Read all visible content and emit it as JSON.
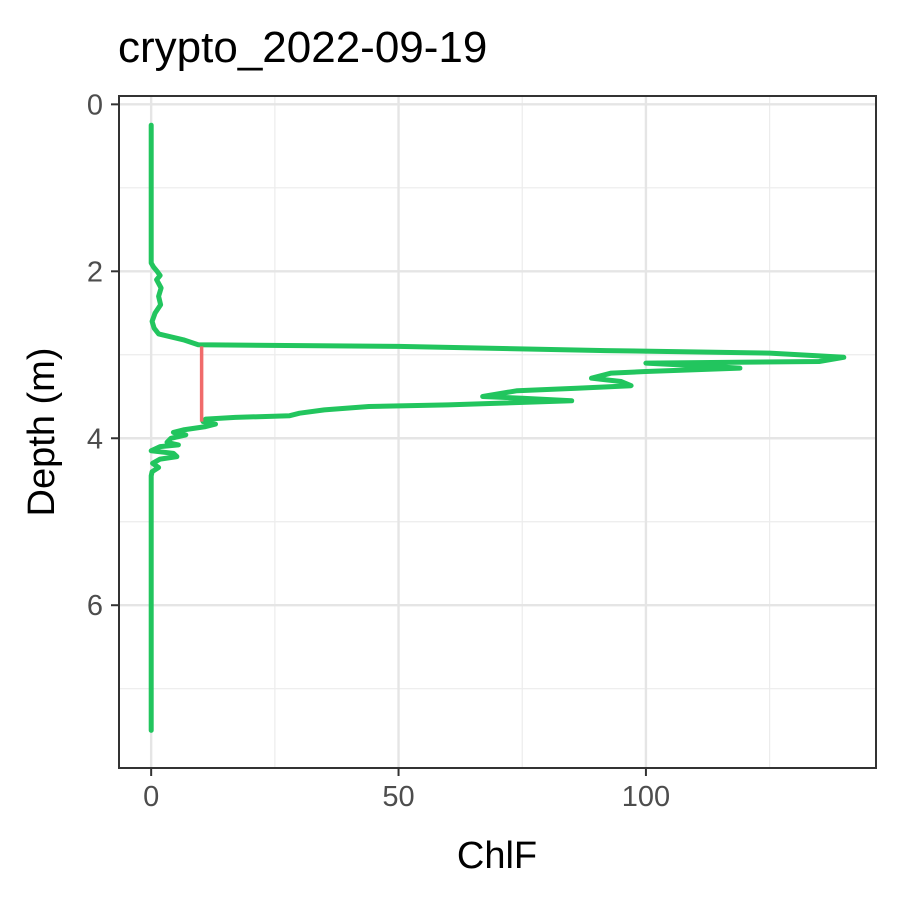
{
  "chart_data": {
    "type": "line",
    "title": "crypto_2022-09-19",
    "xlabel": "ChlF",
    "ylabel": "Depth (m)",
    "xlim": [
      -6.5,
      146.5
    ],
    "ylim": [
      7.95,
      -0.1
    ],
    "y_reversed": true,
    "x_ticks": [
      0,
      50,
      100
    ],
    "x_tick_labels": [
      "0",
      "50",
      "100"
    ],
    "x_minor_ticks": [
      25,
      75,
      125
    ],
    "y_ticks": [
      0,
      2,
      4,
      6
    ],
    "y_tick_labels": [
      "0",
      "2",
      "4",
      "6"
    ],
    "y_minor_ticks": [
      1,
      3,
      5,
      7
    ],
    "grid": true,
    "legend": "none",
    "colors": {
      "profile": "#22C55E",
      "segment": "#F06B6B"
    },
    "series": [
      {
        "points": [
          [
            0,
            0.25
          ],
          [
            0,
            1.9
          ],
          [
            0.5,
            1.95
          ],
          [
            1.2,
            2.0
          ],
          [
            1.8,
            2.05
          ],
          [
            1.1,
            2.1
          ],
          [
            2.0,
            2.2
          ],
          [
            1.5,
            2.3
          ],
          [
            1.9,
            2.4
          ],
          [
            0.8,
            2.5
          ],
          [
            0.2,
            2.6
          ],
          [
            0.6,
            2.68
          ],
          [
            1.5,
            2.75
          ],
          [
            6.5,
            2.82
          ],
          [
            9.5,
            2.88
          ],
          [
            50,
            2.9
          ],
          [
            92,
            2.95
          ],
          [
            125,
            2.98
          ],
          [
            140,
            3.03
          ],
          [
            135,
            3.08
          ],
          [
            100,
            3.1
          ],
          [
            110,
            3.13
          ],
          [
            119,
            3.16
          ],
          [
            100,
            3.2
          ],
          [
            93,
            3.22
          ],
          [
            89,
            3.28
          ],
          [
            95,
            3.32
          ],
          [
            97,
            3.37
          ],
          [
            86,
            3.4
          ],
          [
            74,
            3.43
          ],
          [
            67,
            3.5
          ],
          [
            75,
            3.52
          ],
          [
            85,
            3.55
          ],
          [
            60,
            3.6
          ],
          [
            44,
            3.62
          ],
          [
            35,
            3.66
          ],
          [
            30,
            3.7
          ],
          [
            28,
            3.73
          ],
          [
            17,
            3.75
          ],
          [
            11,
            3.77
          ],
          [
            10.5,
            3.8
          ],
          [
            13,
            3.83
          ],
          [
            11,
            3.86
          ],
          [
            6.5,
            3.9
          ],
          [
            4.5,
            3.93
          ],
          [
            7,
            3.96
          ],
          [
            4,
            4.0
          ],
          [
            3.2,
            4.05
          ],
          [
            5.5,
            4.08
          ],
          [
            1.8,
            4.1
          ],
          [
            0,
            4.15
          ],
          [
            4.5,
            4.18
          ],
          [
            5.2,
            4.22
          ],
          [
            1.8,
            4.25
          ],
          [
            0.3,
            4.3
          ],
          [
            1.5,
            4.35
          ],
          [
            0.2,
            4.4
          ],
          [
            0,
            4.45
          ],
          [
            0,
            7.5
          ]
        ]
      },
      {
        "points": [
          [
            10.2,
            2.9
          ],
          [
            10.2,
            3.8
          ]
        ]
      }
    ]
  }
}
